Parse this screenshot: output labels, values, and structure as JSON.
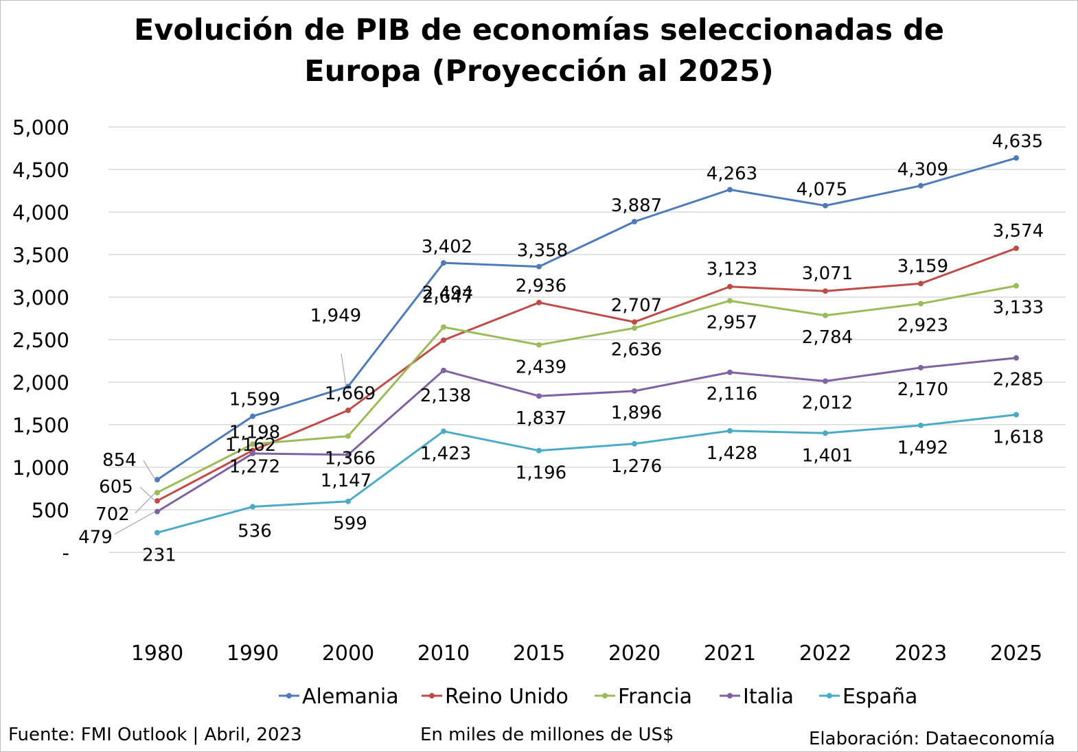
{
  "title_line1": "Evolución de PIB de economías seleccionadas de",
  "title_line2": "Europa (Proyección al 2025)",
  "footer": {
    "source": "Fuente: FMI Outlook | Abril, 2023",
    "units": "En miles de millones de US$",
    "credit": "Elaboración: Dataeconomía"
  },
  "chart_data": {
    "type": "line",
    "title": "Evolución de PIB de economías seleccionadas de Europa (Proyección al 2025)",
    "x": [
      "1980",
      "1990",
      "2000",
      "2010",
      "2015",
      "2020",
      "2021",
      "2022",
      "2023",
      "2025"
    ],
    "ylim": [
      0,
      5000
    ],
    "yticks": [
      0,
      500,
      1000,
      1500,
      2000,
      2500,
      3000,
      3500,
      4000,
      4500,
      5000
    ],
    "ytick_labels": [
      "-",
      "500",
      "1,000",
      "1,500",
      "2,000",
      "2,500",
      "3,000",
      "3,500",
      "4,000",
      "4,500",
      "5,000"
    ],
    "grid": true,
    "legend": "bottom",
    "series": [
      {
        "name": "Alemania",
        "color": "#4e7ab8",
        "values": [
          854,
          1599,
          1949,
          3402,
          3358,
          3887,
          4263,
          4075,
          4309,
          4635
        ]
      },
      {
        "name": "Reino Unido",
        "color": "#bf4b48",
        "values": [
          605,
          1198,
          1669,
          2494,
          2936,
          2707,
          3123,
          3071,
          3159,
          3574
        ]
      },
      {
        "name": "Francia",
        "color": "#9bbb59",
        "values": [
          702,
          1272,
          1366,
          2647,
          2439,
          2636,
          2957,
          2784,
          2923,
          3133
        ]
      },
      {
        "name": "Italia",
        "color": "#7e62a1",
        "values": [
          479,
          1162,
          1147,
          2138,
          1837,
          1896,
          2116,
          2012,
          2170,
          2285
        ]
      },
      {
        "name": "España",
        "color": "#4babc6",
        "values": [
          231,
          536,
          599,
          1423,
          1196,
          1276,
          1428,
          1401,
          1492,
          1618
        ]
      }
    ]
  }
}
